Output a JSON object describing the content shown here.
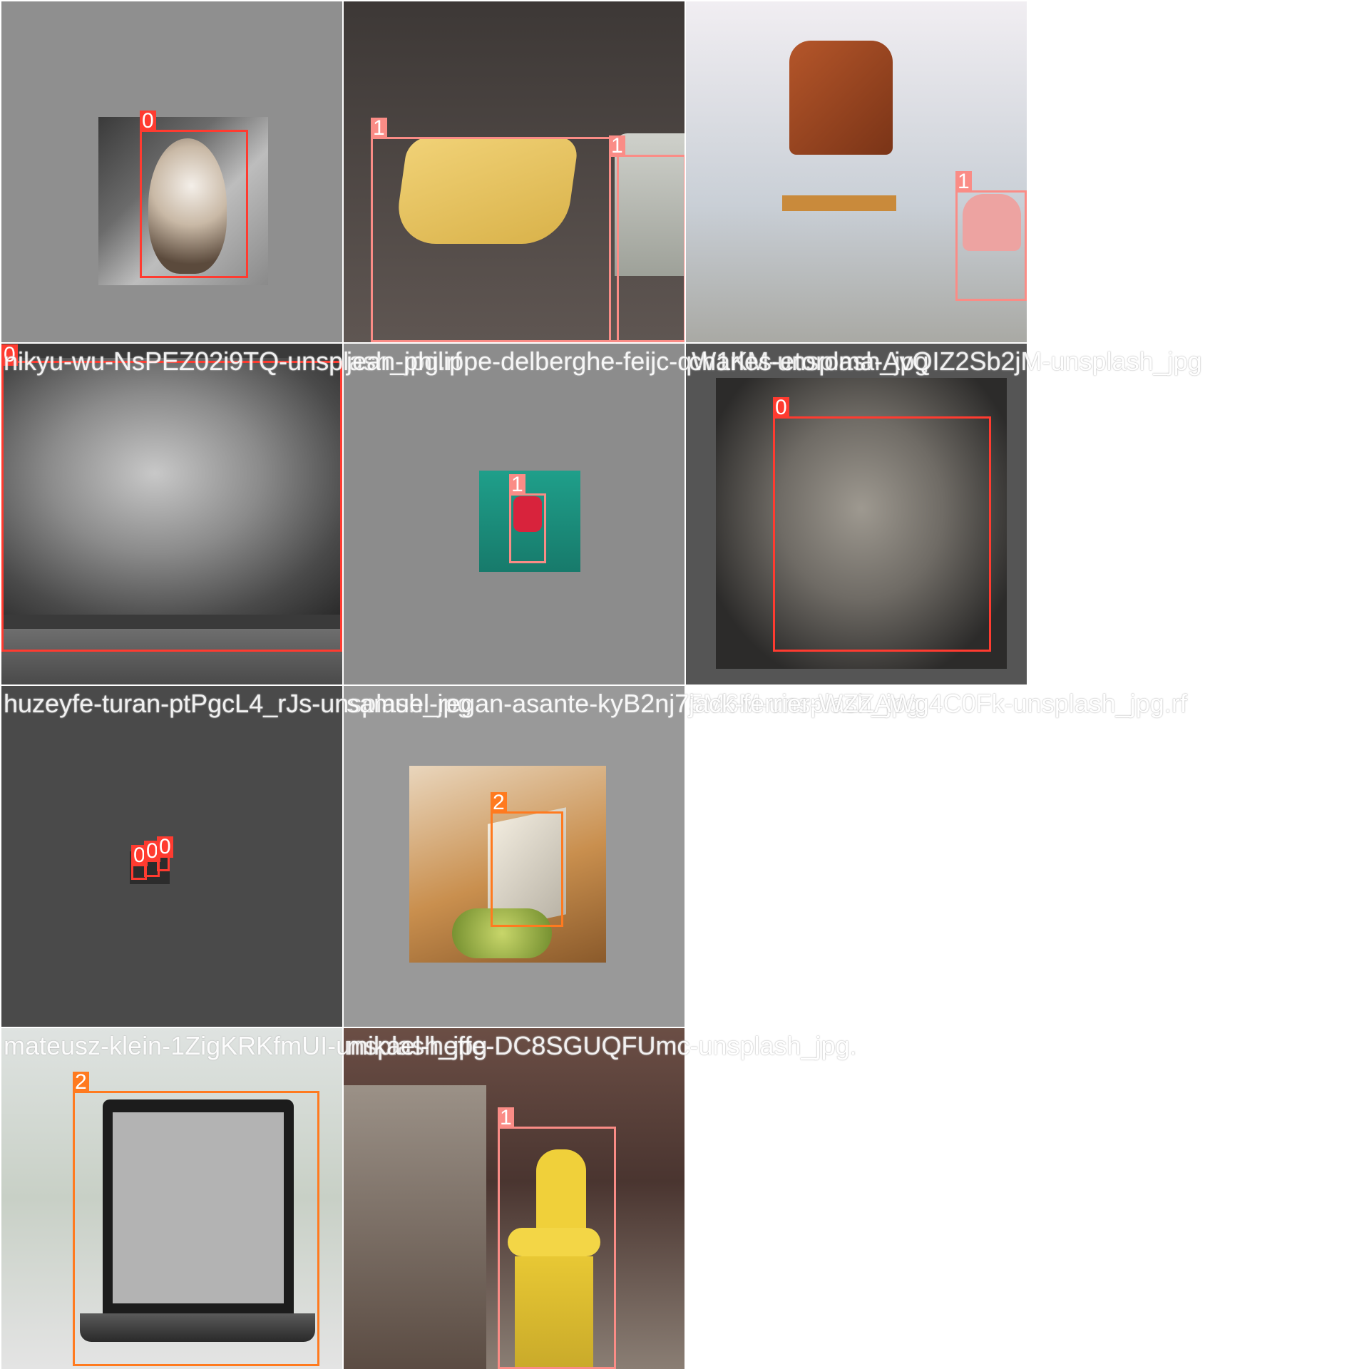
{
  "filenames": [
    "nikyu-wu-NsPEZ02i9TQ-unsplash_jpg.rf",
    "jean-philippe-delberghe-feijc-qW1KM-unsplash_jpg",
    "charles-etoroma-AvQIZ2Sb2jM-unsplash_jpg",
    "huzeyfe-turan-ptPgcL4_rJs-unsplash_jpg",
    "samuel-regan-asante-kyB2nj75M6M-unsplash_jpg",
    "jack-ferrier-WZZAWg4C0Fk-unsplash_jpg.rf",
    "mateusz-klein-1ZigKRKfmUI-unsplash_jpg",
    "mikael-heffe-DC8SGUQFUmc-unsplash_jpg."
  ],
  "classes": {
    "0": {
      "color": "#ff3b30"
    },
    "1": {
      "color": "#fa8c86"
    },
    "2": {
      "color": "#ff7a1f"
    }
  },
  "labels": {
    "t1_b1": "0",
    "t2_b1": "1",
    "t2_b2": "1",
    "t3_b1": "1",
    "t4_b1": "0",
    "t5_b1": "1",
    "t6_b1": "0",
    "t7_b1": "0",
    "t7_b2": "0",
    "t7_b3": "0",
    "t8_b1": "2",
    "t10_b1": "2",
    "t11_b1": "1"
  }
}
